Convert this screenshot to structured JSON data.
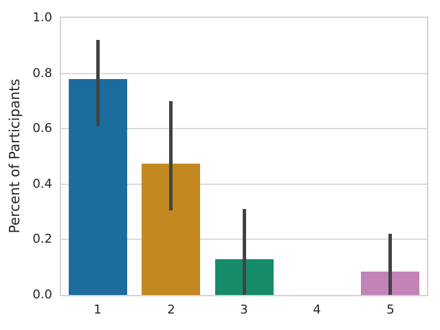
{
  "figure": {
    "background": "#ffffff"
  },
  "chart_data": {
    "type": "bar",
    "title": "",
    "xlabel": "",
    "ylabel": "Percent of Participants",
    "categories": [
      "1",
      "2",
      "3",
      "4",
      "5"
    ],
    "values": [
      0.78,
      0.475,
      0.13,
      0,
      0.085
    ],
    "error_bars": [
      {
        "low": 0.61,
        "high": 0.92
      },
      {
        "low": 0.305,
        "high": 0.7
      },
      {
        "low": 0.0,
        "high": 0.31
      },
      null,
      {
        "low": 0.0,
        "high": 0.22
      }
    ],
    "bar_colors": [
      "#1c6d9e",
      "#c3881f",
      "#168b6a",
      null,
      "#c283b6"
    ],
    "ylim": [
      0,
      1.0
    ],
    "yticks": [
      "0.0",
      "0.2",
      "0.4",
      "0.6",
      "0.8",
      "1.0"
    ],
    "grid": true,
    "legend": null,
    "style": {
      "error_bar_color": "#424242",
      "grid_color": "#dcdcdc",
      "spine_color": "#d4d4d4",
      "tick_label_color": "#262626",
      "axis_label_color": "#262626",
      "background": "#ffffff"
    }
  }
}
